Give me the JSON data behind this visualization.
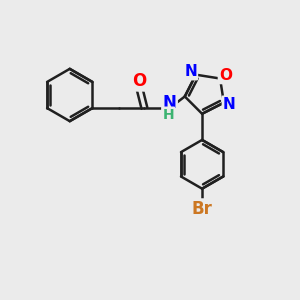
{
  "bg_color": "#EBEBEB",
  "bond_color": "#202020",
  "N_color": "#0000FF",
  "O_color": "#FF0000",
  "Br_color": "#CC7722",
  "H_color": "#3CB371",
  "line_width": 1.8,
  "figsize": [
    3.0,
    3.0
  ],
  "dpi": 100,
  "xlim": [
    0,
    10
  ],
  "ylim": [
    0,
    10
  ]
}
